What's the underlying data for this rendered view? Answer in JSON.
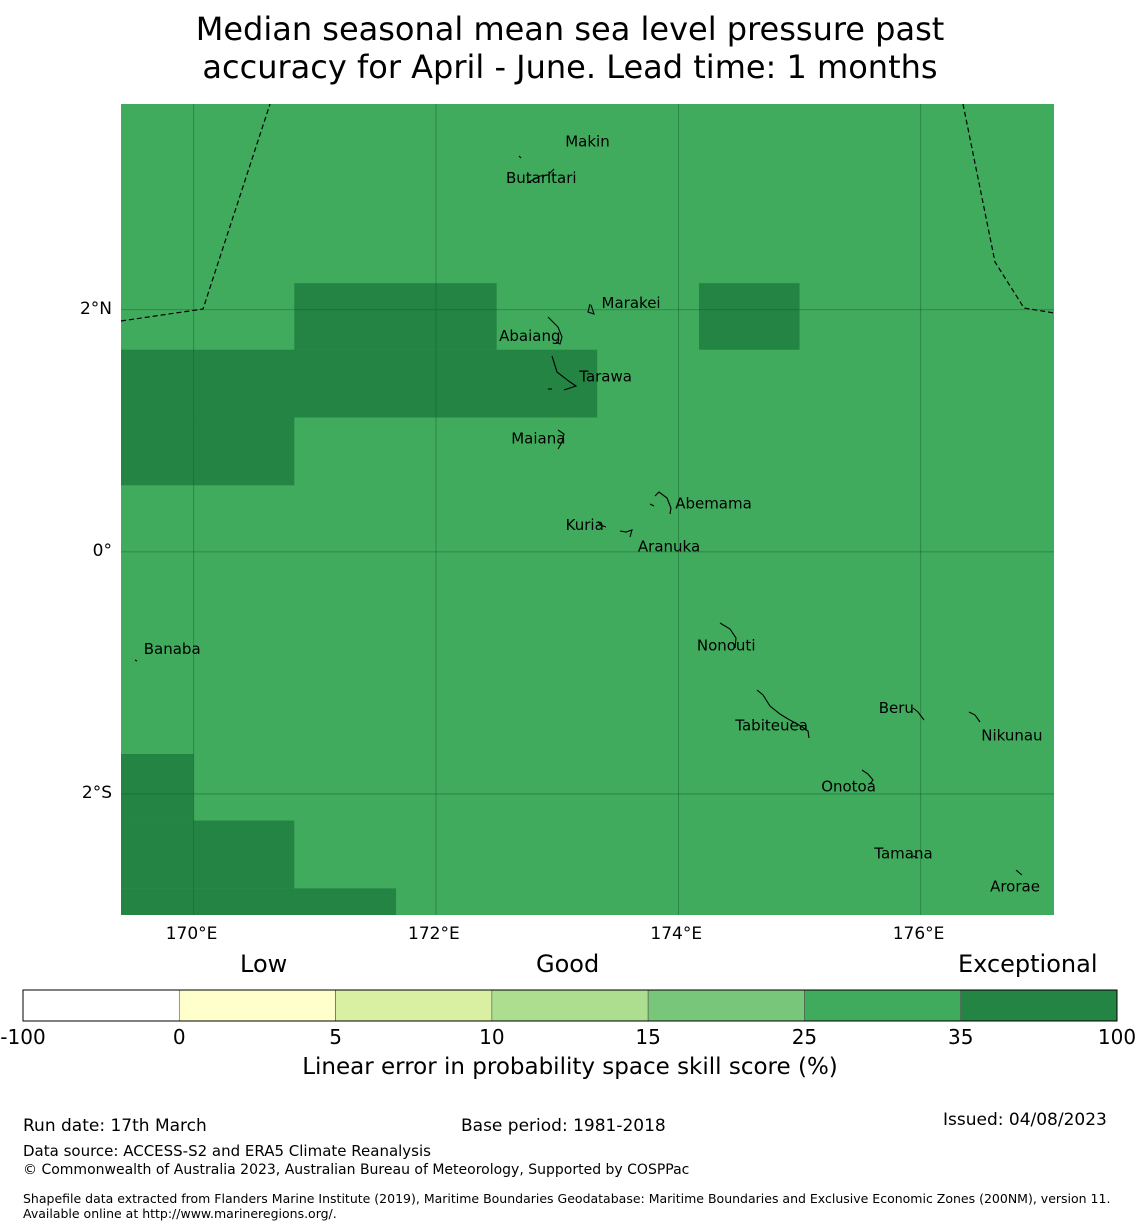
{
  "title_line1": "Median seasonal mean sea level pressure past",
  "title_line2": "accuracy for April - June. Lead time: 1 months",
  "map": {
    "lon_range": [
      169.4,
      177.1
    ],
    "lat_range": [
      -3.0,
      3.7
    ],
    "background_color": "#41ab5d",
    "high_skill_color": "#238443",
    "high_skill_cells": [
      {
        "lon": [
          170.83,
          172.5
        ],
        "lat": [
          1.67,
          2.22
        ]
      },
      {
        "lon": [
          174.17,
          175.0
        ],
        "lat": [
          1.67,
          2.22
        ]
      },
      {
        "lon": [
          169.4,
          173.33
        ],
        "lat": [
          1.11,
          1.67
        ]
      },
      {
        "lon": [
          169.4,
          170.83
        ],
        "lat": [
          0.55,
          1.11
        ]
      },
      {
        "lon": [
          169.4,
          170.0
        ],
        "lat": [
          -2.22,
          -1.67
        ]
      },
      {
        "lon": [
          169.4,
          170.83
        ],
        "lat": [
          -2.78,
          -2.22
        ]
      },
      {
        "lon": [
          169.4,
          171.67
        ],
        "lat": [
          -3.0,
          -2.78
        ]
      }
    ],
    "x_ticks": [
      {
        "value": 170,
        "label": "170°E"
      },
      {
        "value": 172,
        "label": "172°E"
      },
      {
        "value": 174,
        "label": "174°E"
      },
      {
        "value": 176,
        "label": "176°E"
      }
    ],
    "y_ticks": [
      {
        "value": 2,
        "label": "2°N"
      },
      {
        "value": 0,
        "label": "0°"
      },
      {
        "value": -2,
        "label": "2°S"
      }
    ],
    "places": [
      {
        "name": "Makin",
        "lon": 173.0,
        "lat": 3.35
      },
      {
        "name": "Butaritari",
        "lon": 172.8,
        "lat": 3.08
      },
      {
        "name": "Marakei",
        "lon": 173.3,
        "lat": 2.0
      },
      {
        "name": "Abaiang",
        "lon": 172.95,
        "lat": 1.85
      },
      {
        "name": "Tarawa",
        "lon": 173.05,
        "lat": 1.45
      },
      {
        "name": "Maiana",
        "lon": 173.0,
        "lat": 0.93
      },
      {
        "name": "Abemama",
        "lon": 173.85,
        "lat": 0.4
      },
      {
        "name": "Kuria",
        "lon": 173.4,
        "lat": 0.22
      },
      {
        "name": "Aranuka",
        "lon": 173.6,
        "lat": 0.17
      },
      {
        "name": "Nonouti",
        "lon": 174.4,
        "lat": -0.65
      },
      {
        "name": "Banaba",
        "lon": 169.53,
        "lat": -0.86
      },
      {
        "name": "Tabiteuea",
        "lon": 174.8,
        "lat": -1.4
      },
      {
        "name": "Beru",
        "lon": 176.0,
        "lat": -1.33
      },
      {
        "name": "Nikunau",
        "lon": 176.45,
        "lat": -1.37
      },
      {
        "name": "Onotoa",
        "lon": 175.55,
        "lat": -1.8
      },
      {
        "name": "Tamana",
        "lon": 175.98,
        "lat": -2.5
      },
      {
        "name": "Arorae",
        "lon": 176.82,
        "lat": -2.64
      }
    ]
  },
  "colorbar": {
    "categories": [
      "Low",
      "Good",
      "Exceptional"
    ],
    "colors": [
      "#ffffff",
      "#ffffcc",
      "#d9f0a3",
      "#addd8e",
      "#78c679",
      "#41ab5d",
      "#238443"
    ],
    "ticks": [
      "-100",
      "0",
      "5",
      "10",
      "15",
      "25",
      "35",
      "100"
    ],
    "label": "Linear error in probability space skill score (%)"
  },
  "run_date": "Run date: 17th March",
  "base_period": "Base period: 1981-2018",
  "issued": "Issued: 04/08/2023",
  "data_source": "Data source: ACCESS-S2 and ERA5 Climate Reanalysis",
  "copyright": "© Commonwealth of Australia 2023, Australian Bureau of Meteorology, Supported by COSPPac",
  "shapefile_note": "Shapefile data extracted from Flanders Marine Institute (2019), Maritime Boundaries Geodatabase: Maritime Boundaries and Exclusive Economic Zones (200NM), version 11. Available online at http://www.marineregions.org/."
}
